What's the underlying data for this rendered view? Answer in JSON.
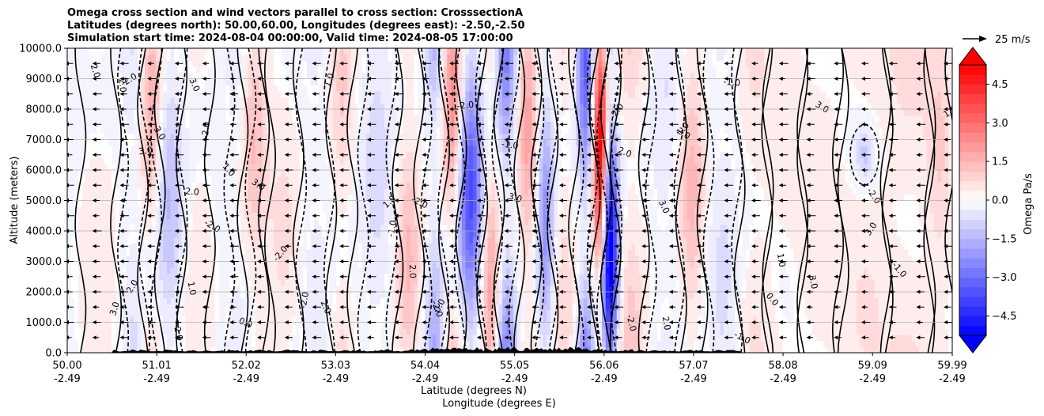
{
  "title_lines": [
    "Omega cross section and wind vectors parallel to cross section: CrosssectionA",
    "Latitudes (degrees north): 50.00,60.00, Longitudes (degrees east): -2.50,-2.50",
    "Simulation start time: 2024-08-04 00:00:00, Valid time: 2024-08-05 17:00:00"
  ],
  "chart_data": {
    "type": "heatmap",
    "title": "Omega cross section and wind vectors parallel to cross section: CrosssectionA",
    "ylabel": "Altitude (meters)",
    "xlabel_lines": [
      "Latitude (degrees N)",
      "Longitude (degrees E)"
    ],
    "ylim": [
      0,
      10000
    ],
    "xlim": [
      50.0,
      59.99
    ],
    "y_ticks": [
      "0.0",
      "1000.0",
      "2000.0",
      "3000.0",
      "4000.0",
      "5000.0",
      "6000.0",
      "7000.0",
      "8000.0",
      "9000.0",
      "10000.0"
    ],
    "y_tick_values": [
      0,
      1000,
      2000,
      3000,
      4000,
      5000,
      6000,
      7000,
      8000,
      9000,
      10000
    ],
    "x_ticks": [
      {
        "lat": "50.00",
        "lon": "-2.49",
        "value": 50.0
      },
      {
        "lat": "51.01",
        "lon": "-2.49",
        "value": 51.01
      },
      {
        "lat": "52.02",
        "lon": "-2.49",
        "value": 52.02
      },
      {
        "lat": "53.03",
        "lon": "-2.49",
        "value": 53.03
      },
      {
        "lat": "54.04",
        "lon": "-2.49",
        "value": 54.04
      },
      {
        "lat": "55.05",
        "lon": "-2.49",
        "value": 55.05
      },
      {
        "lat": "56.06",
        "lon": "-2.49",
        "value": 56.06
      },
      {
        "lat": "57.07",
        "lon": "-2.49",
        "value": 57.07
      },
      {
        "lat": "58.08",
        "lon": "-2.49",
        "value": 58.08
      },
      {
        "lat": "59.09",
        "lon": "-2.49",
        "value": 59.09
      },
      {
        "lat": "59.99",
        "lon": "-2.49",
        "value": 59.99
      }
    ],
    "grid": "horizontal",
    "colorbar": {
      "label": "Omega Pa/s",
      "ticks": [
        "4.5",
        "3.0",
        "1.5",
        "0.0",
        "−1.5",
        "−3.0",
        "−4.5"
      ],
      "tick_values": [
        4.5,
        3.0,
        1.5,
        0.0,
        -1.5,
        -3.0,
        -4.5
      ],
      "range": [
        -5.25,
        5.25
      ],
      "extend": "both",
      "cmap": "bwr"
    },
    "quiver_key": "25 m/s",
    "contour_labels": [
      "0.0",
      "1.0",
      "-1.0",
      "2.0",
      "-2.0",
      "3.0"
    ],
    "bands": [
      {
        "lat": 50.35,
        "w": 0.25,
        "v": 0.4
      },
      {
        "lat": 50.75,
        "w": 0.15,
        "v": -0.6
      },
      {
        "lat": 50.95,
        "w": 0.12,
        "v": 1.6
      },
      {
        "lat": 51.15,
        "w": 0.18,
        "v": -1.2
      },
      {
        "lat": 51.45,
        "w": 0.2,
        "v": 0.5
      },
      {
        "lat": 51.95,
        "w": 0.15,
        "v": -0.5
      },
      {
        "lat": 52.1,
        "w": 0.15,
        "v": 1.2
      },
      {
        "lat": 52.45,
        "w": 0.2,
        "v": 0.6
      },
      {
        "lat": 52.8,
        "w": 0.2,
        "v": -0.4
      },
      {
        "lat": 53.1,
        "w": 0.15,
        "v": 0.9
      },
      {
        "lat": 53.5,
        "w": 0.2,
        "v": -0.7
      },
      {
        "lat": 53.85,
        "w": 0.15,
        "v": 1.2
      },
      {
        "lat": 54.15,
        "w": 0.12,
        "v": -1.5
      },
      {
        "lat": 54.35,
        "w": 0.12,
        "v": 2.2
      },
      {
        "lat": 54.55,
        "w": 0.15,
        "v": -3.2
      },
      {
        "lat": 54.78,
        "w": 0.12,
        "v": 1.8
      },
      {
        "lat": 54.95,
        "w": 0.12,
        "v": -2.4
      },
      {
        "lat": 55.2,
        "w": 0.12,
        "v": 1.6
      },
      {
        "lat": 55.4,
        "w": 0.1,
        "v": -2.0
      },
      {
        "lat": 55.6,
        "w": 0.15,
        "v": 0.8
      },
      {
        "lat": 55.85,
        "w": 0.1,
        "v": -2.8
      },
      {
        "lat": 56.02,
        "w": 0.08,
        "v": 5.2
      },
      {
        "lat": 56.12,
        "w": 0.1,
        "v": -5.2
      },
      {
        "lat": 56.35,
        "w": 0.2,
        "v": 1.0
      },
      {
        "lat": 56.75,
        "w": 0.2,
        "v": -0.5
      },
      {
        "lat": 57.05,
        "w": 0.15,
        "v": 1.3
      },
      {
        "lat": 57.4,
        "w": 0.2,
        "v": -0.6
      },
      {
        "lat": 57.75,
        "w": 0.2,
        "v": 0.6
      },
      {
        "lat": 58.1,
        "w": 0.25,
        "v": 0.3
      },
      {
        "lat": 58.5,
        "w": 0.25,
        "v": 0.4
      },
      {
        "lat": 59.0,
        "w": 0.3,
        "v": 0.5
      },
      {
        "lat": 59.5,
        "w": 0.3,
        "v": 0.6
      },
      {
        "lat": 59.85,
        "w": 0.15,
        "v": 0.8
      }
    ]
  }
}
